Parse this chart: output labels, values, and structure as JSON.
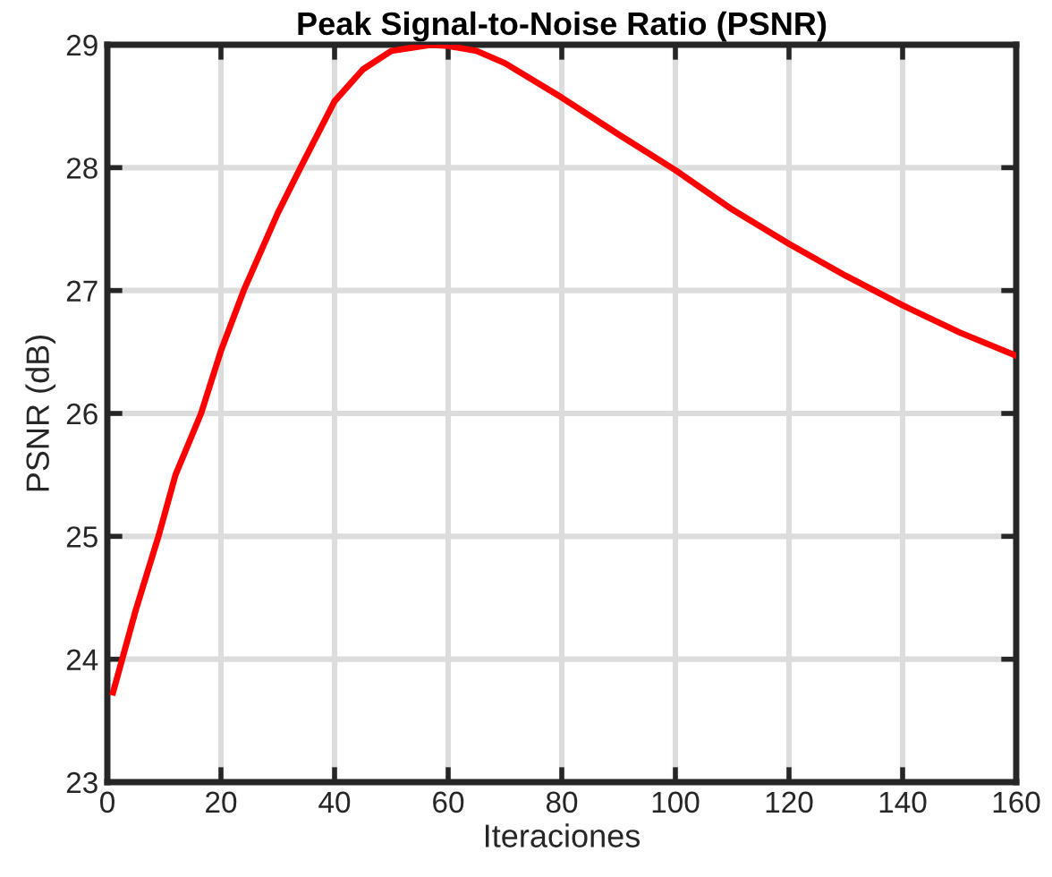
{
  "chart_data": {
    "type": "line",
    "title": "Peak Signal-to-Noise Ratio (PSNR)",
    "xlabel": "Iteraciones",
    "ylabel": "PSNR (dB)",
    "xlim": [
      0,
      160
    ],
    "xticks": [
      0,
      20,
      40,
      60,
      80,
      100,
      120,
      140,
      160
    ],
    "ylim": [
      23,
      29
    ],
    "yticks": [
      23,
      24,
      25,
      26,
      27,
      28,
      29
    ],
    "grid": true,
    "marker": "none",
    "line_style": "solid",
    "series": [
      {
        "color": "#ff0000",
        "x": [
          1,
          5,
          9,
          12,
          16.5,
          20,
          24,
          30,
          34,
          40,
          45,
          50,
          57,
          60,
          65,
          70,
          80,
          90,
          100,
          110,
          120,
          130,
          140,
          150,
          160
        ],
        "values": [
          23.73,
          24.4,
          25.0,
          25.5,
          26.0,
          26.51,
          27.0,
          27.63,
          28.0,
          28.54,
          28.8,
          28.95,
          29.0,
          28.99,
          28.95,
          28.85,
          28.57,
          28.27,
          27.98,
          27.66,
          27.38,
          27.12,
          26.88,
          26.66,
          26.47
        ]
      }
    ]
  }
}
